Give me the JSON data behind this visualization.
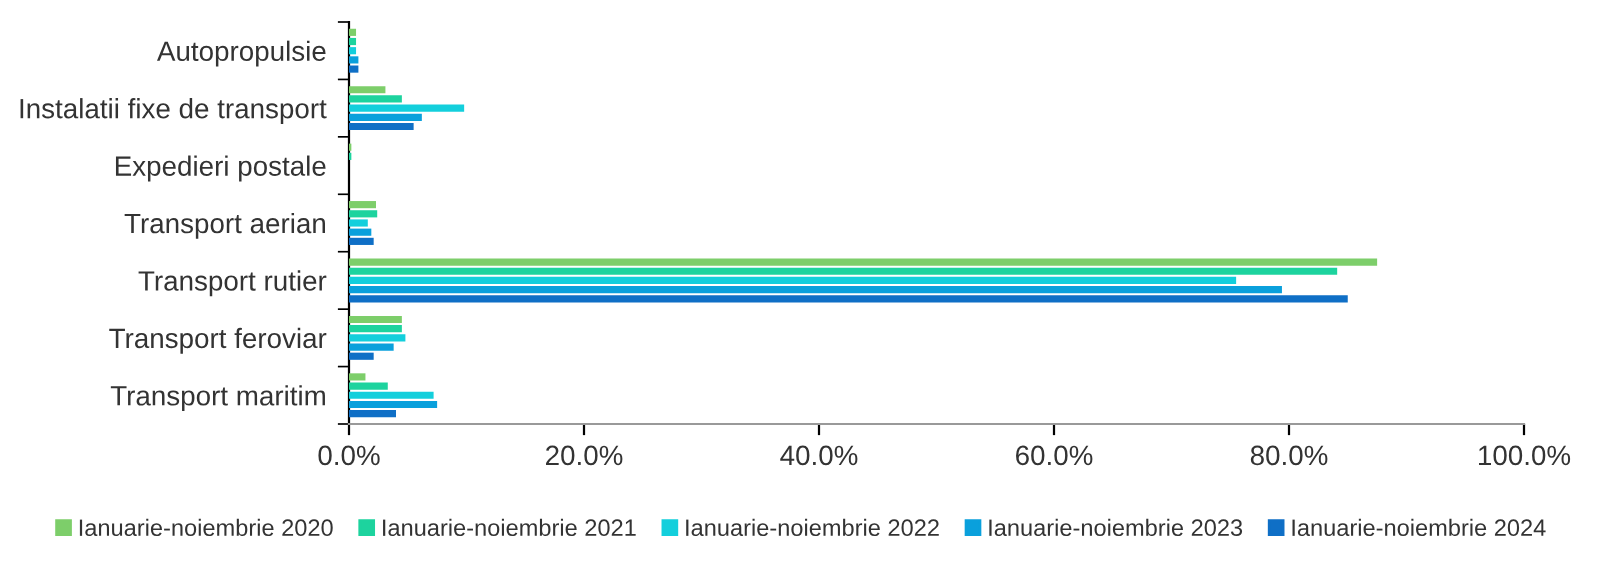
{
  "chart_data": {
    "type": "bar",
    "orientation": "horizontal",
    "categories": [
      "Autopropulsie",
      "Instalatii fixe de transport",
      "Expedieri postale",
      "Transport aerian",
      "Transport rutier",
      "Transport feroviar",
      "Transport maritim"
    ],
    "series": [
      {
        "name": "Ianuarie-noiembrie 2020",
        "color": "#7dce6a",
        "values": [
          0.6,
          3.1,
          0.2,
          2.3,
          87.5,
          4.5,
          1.4
        ]
      },
      {
        "name": "Ianuarie-noiembrie 2021",
        "color": "#1dd39e",
        "values": [
          0.6,
          4.5,
          0.2,
          2.4,
          84.1,
          4.5,
          3.3
        ]
      },
      {
        "name": "Ianuarie-noiembrie 2022",
        "color": "#13cfdc",
        "values": [
          0.6,
          9.8,
          0,
          1.6,
          75.5,
          4.8,
          7.2
        ]
      },
      {
        "name": "Ianuarie-noiembrie 2023",
        "color": "#0aa0dc",
        "values": [
          0.8,
          6.2,
          0,
          1.9,
          79.4,
          3.8,
          7.5
        ]
      },
      {
        "name": "Ianuarie-noiembrie 2024",
        "color": "#0f6fc6",
        "values": [
          0.8,
          5.5,
          0,
          2.1,
          85.0,
          2.1,
          4.0
        ]
      }
    ],
    "xlim": [
      0,
      100
    ],
    "xticks": [
      {
        "value": 0,
        "label": "0.0%"
      },
      {
        "value": 20,
        "label": "20.0%"
      },
      {
        "value": 40,
        "label": "40.0%"
      },
      {
        "value": 60,
        "label": "60.0%"
      },
      {
        "value": 80,
        "label": "80.0%"
      },
      {
        "value": 100,
        "label": "100.0%"
      }
    ],
    "grid": false,
    "legend": "bottom",
    "marker": "square"
  }
}
